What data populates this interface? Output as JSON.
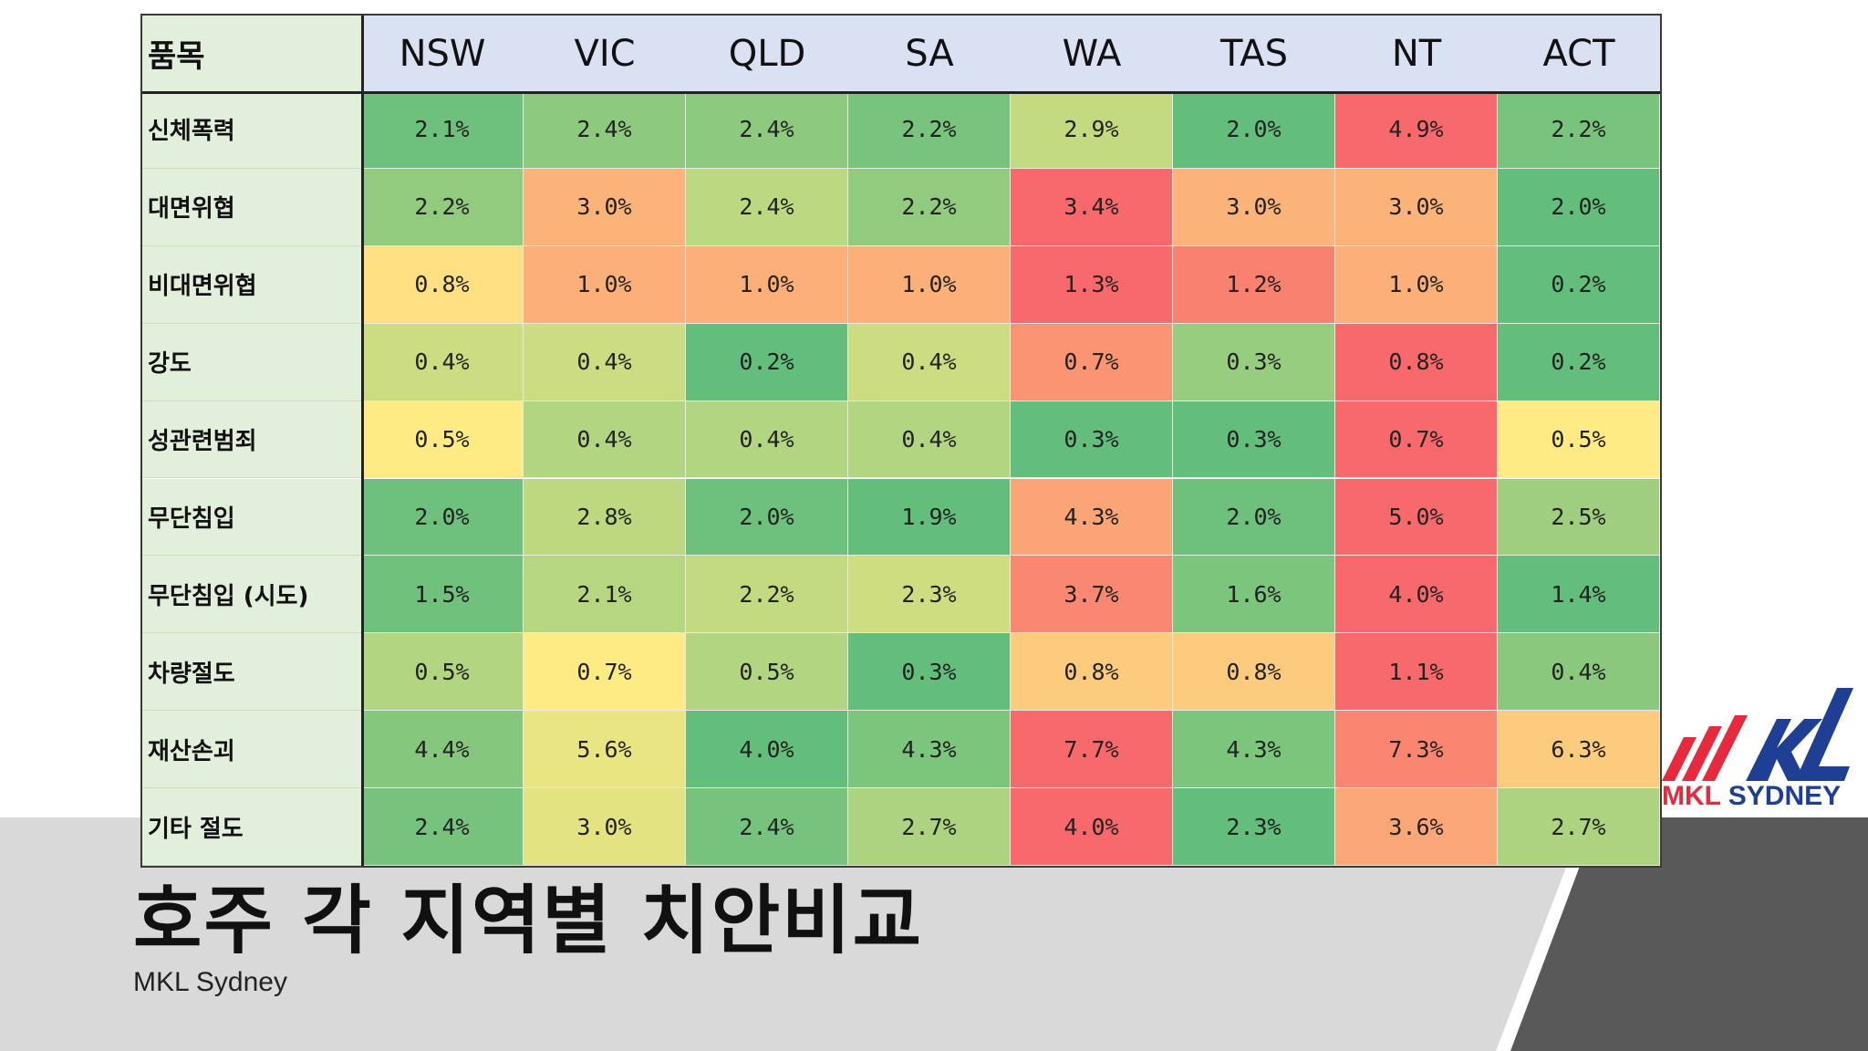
{
  "slide": {
    "title": "호주 각 지역별 치안비교",
    "subtitle": "MKL Sydney",
    "logo": {
      "mark": "MKL",
      "text_part1": "MKL ",
      "text_part2": "SYDNEY"
    }
  },
  "colors": {
    "header_bg": "#d9e1f2",
    "label_bg": "#e2efda",
    "band_bg": "#d9d9d9",
    "wedge": "#595959",
    "logo_red": "#e8283c",
    "logo_blue": "#1f3f94",
    "scale_low": "#63be7b",
    "scale_mid": "#ffeb84",
    "scale_high": "#f8696b"
  },
  "chart_data": {
    "type": "heatmap",
    "corner_label": "품목",
    "columns": [
      "NSW",
      "VIC",
      "QLD",
      "SA",
      "WA",
      "TAS",
      "NT",
      "ACT"
    ],
    "rows": [
      "신체폭력",
      "대면위협",
      "비대면위협",
      "강도",
      "성관련범죄",
      "무단침입",
      "무단침입 (시도)",
      "차량절도",
      "재산손괴",
      "기타 절도"
    ],
    "values": [
      [
        2.1,
        2.4,
        2.4,
        2.2,
        2.9,
        2.0,
        4.9,
        2.2
      ],
      [
        2.2,
        3.0,
        2.4,
        2.2,
        3.4,
        3.0,
        3.0,
        2.0
      ],
      [
        0.8,
        1.0,
        1.0,
        1.0,
        1.3,
        1.2,
        1.0,
        0.2
      ],
      [
        0.4,
        0.4,
        0.2,
        0.4,
        0.7,
        0.3,
        0.8,
        0.2
      ],
      [
        0.5,
        0.4,
        0.4,
        0.4,
        0.3,
        0.3,
        0.7,
        0.5
      ],
      [
        2.0,
        2.8,
        2.0,
        1.9,
        4.3,
        2.0,
        5.0,
        2.5
      ],
      [
        1.5,
        2.1,
        2.2,
        2.3,
        3.7,
        1.6,
        4.0,
        1.4
      ],
      [
        0.5,
        0.7,
        0.5,
        0.3,
        0.8,
        0.8,
        1.1,
        0.4
      ],
      [
        4.4,
        5.6,
        4.0,
        4.3,
        7.7,
        4.3,
        7.3,
        6.3
      ],
      [
        2.4,
        3.0,
        2.4,
        2.7,
        4.0,
        2.3,
        3.6,
        2.7
      ]
    ],
    "value_suffix": "%",
    "color_scale": "per-row green-yellow-red (low to high)"
  }
}
